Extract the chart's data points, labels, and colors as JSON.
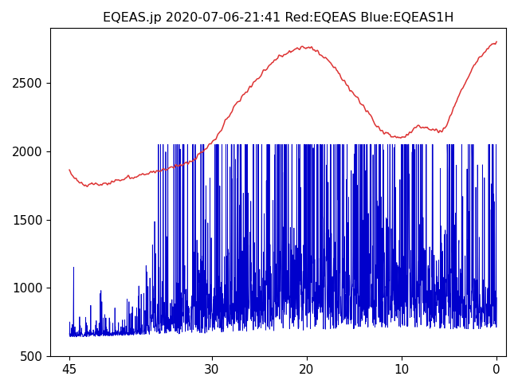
{
  "title": "EQEAS.jp 2020-07-06-21:41 Red:EQEAS Blue:EQEAS1H",
  "xlim": [
    47,
    -1
  ],
  "ylim": [
    500,
    2900
  ],
  "yticks": [
    500,
    1000,
    1500,
    2000,
    2500
  ],
  "xticks": [
    45,
    30,
    20,
    10,
    0
  ],
  "red_color": "#dd3333",
  "blue_color": "#0000cc",
  "bg_color": "#ffffff",
  "title_fontsize": 11.5,
  "n_points": 2000
}
